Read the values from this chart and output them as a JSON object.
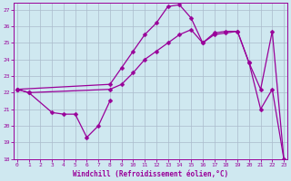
{
  "xlabel": "Windchill (Refroidissement éolien,°C)",
  "bg_color": "#cfe8f0",
  "line_color": "#990099",
  "grid_color": "#aabbcc",
  "xlim": [
    -0.3,
    23.3
  ],
  "ylim": [
    18,
    27.4
  ],
  "xticks": [
    0,
    1,
    2,
    3,
    4,
    5,
    6,
    7,
    8,
    9,
    10,
    11,
    12,
    13,
    14,
    15,
    16,
    17,
    18,
    19,
    20,
    21,
    22,
    23
  ],
  "yticks": [
    18,
    19,
    20,
    21,
    22,
    23,
    24,
    25,
    26,
    27
  ],
  "series1_x": [
    0,
    1,
    3,
    4,
    5,
    6,
    7,
    8
  ],
  "series1_y": [
    22.2,
    22.0,
    20.8,
    20.7,
    20.7,
    19.3,
    20.0,
    21.5
  ],
  "series2_x": [
    0,
    1,
    8,
    9,
    10,
    11,
    12,
    13,
    14,
    15,
    16,
    17,
    18,
    19,
    20,
    21,
    22,
    23
  ],
  "series2_y": [
    22.2,
    22.0,
    22.2,
    22.5,
    23.2,
    24.0,
    24.5,
    25.0,
    25.5,
    25.8,
    25.0,
    25.6,
    25.7,
    25.7,
    23.8,
    22.2,
    25.7,
    18.0
  ],
  "series3_x": [
    0,
    8,
    9,
    10,
    11,
    12,
    13,
    14,
    15,
    16,
    17,
    18,
    19,
    20,
    21,
    22,
    23
  ],
  "series3_y": [
    22.2,
    22.5,
    23.5,
    24.5,
    25.5,
    26.2,
    27.2,
    27.3,
    26.5,
    25.0,
    25.5,
    25.6,
    25.7,
    23.8,
    21.0,
    22.2,
    18.0
  ]
}
